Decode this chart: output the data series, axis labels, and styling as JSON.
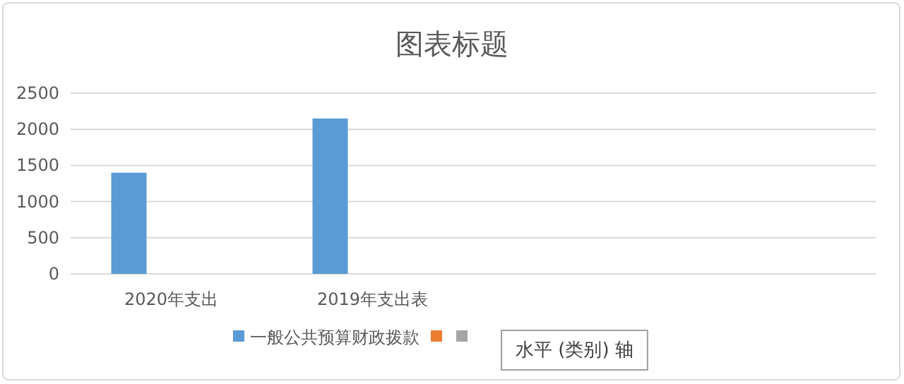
{
  "chart_data": {
    "type": "bar",
    "title": "图表标题",
    "categories": [
      "2020年支出",
      "2019年支出表",
      null,
      null
    ],
    "series": [
      {
        "name": "一般公共预算财政拨款",
        "color": "#5b9bd5",
        "values": [
          1400,
          2150,
          null,
          null
        ]
      },
      {
        "color": "#ed7d31",
        "values": [
          null,
          null,
          null,
          null
        ]
      },
      {
        "color": "#a5a5a5",
        "values": [
          null,
          null,
          null,
          null
        ]
      }
    ],
    "ylim": [
      0,
      2500
    ],
    "yticks": [
      0,
      500,
      1000,
      1500,
      2000,
      2500
    ],
    "grid": "y",
    "legend": "bottom",
    "annotations": [
      "水平 (类别) 轴"
    ]
  }
}
